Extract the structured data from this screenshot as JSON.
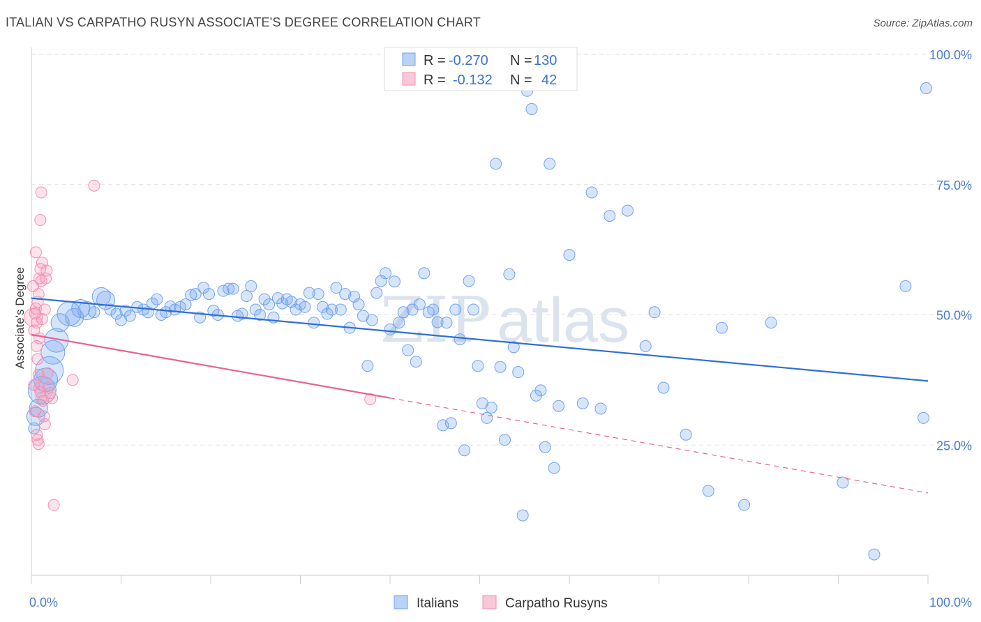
{
  "title": "ITALIAN VS CARPATHO RUSYN ASSOCIATE'S DEGREE CORRELATION CHART",
  "source": "Source: ZipAtlas.com",
  "watermark": {
    "zip": "ZIP",
    "atlas": "atlas"
  },
  "legend": {
    "rows": [
      {
        "r_label": "R =",
        "r_value": "-0.270",
        "n_label": "N =",
        "n_value": "130",
        "color": "#6fa3ef"
      },
      {
        "r_label": "R =",
        "r_value": "-0.132",
        "n_label": "N =",
        "n_value": "42",
        "color": "#f48fb1"
      }
    ]
  },
  "bottom_legend": [
    {
      "label": "Italians",
      "color": "#6fa3ef"
    },
    {
      "label": "Carpatho Rusyns",
      "color": "#f48fb1"
    }
  ],
  "chart_data": {
    "type": "scatter",
    "title": "ITALIAN VS CARPATHO RUSYN ASSOCIATE'S DEGREE CORRELATION CHART",
    "xlabel": "",
    "ylabel": "Associate's Degree",
    "xlim": [
      0,
      100
    ],
    "ylim": [
      0,
      100
    ],
    "x_tick_labels": [
      "0.0%",
      "100.0%"
    ],
    "y_tick_labels": [
      "100.0%",
      "75.0%",
      "50.0%",
      "25.0%"
    ],
    "y_ticks": [
      100,
      75,
      50,
      25
    ],
    "grid": true,
    "legend_position": "top-center",
    "series": [
      {
        "name": "Italians",
        "color": "#6fa3ef",
        "trend": {
          "x": [
            0,
            100
          ],
          "y": [
            53.2,
            37.3
          ],
          "solid_to": 100
        },
        "points": [
          [
            0.3,
            28.2,
            1
          ],
          [
            0.5,
            30.5,
            2
          ],
          [
            0.8,
            32.1,
            2
          ],
          [
            1.2,
            35.5,
            4
          ],
          [
            1.6,
            37.5,
            3
          ],
          [
            2.0,
            39.3,
            4
          ],
          [
            2.4,
            42.8,
            3
          ],
          [
            2.8,
            45.1,
            3
          ],
          [
            3.2,
            48.5,
            2
          ],
          [
            4.2,
            50.2,
            3
          ],
          [
            4.8,
            49.5,
            2
          ],
          [
            5.5,
            51.2,
            2
          ],
          [
            6.2,
            50.8,
            2
          ],
          [
            7.0,
            50.5,
            1
          ],
          [
            7.8,
            53.5,
            2
          ],
          [
            8.3,
            52.8,
            2
          ],
          [
            8.8,
            51.0,
            1
          ],
          [
            9.5,
            50.2,
            1
          ],
          [
            10.0,
            49.0,
            1
          ],
          [
            10.5,
            50.8,
            1
          ],
          [
            11.0,
            49.8,
            1
          ],
          [
            11.8,
            51.5,
            1
          ],
          [
            12.5,
            51.0,
            1
          ],
          [
            13.0,
            50.5,
            1
          ],
          [
            13.5,
            52.2,
            1
          ],
          [
            14.0,
            53.0,
            1
          ],
          [
            14.5,
            50.0,
            1
          ],
          [
            15.0,
            50.5,
            1
          ],
          [
            15.5,
            51.6,
            1
          ],
          [
            16.0,
            51.0,
            1
          ],
          [
            16.6,
            51.5,
            1
          ],
          [
            17.2,
            52.0,
            1
          ],
          [
            17.8,
            53.8,
            1
          ],
          [
            18.3,
            54.0,
            1
          ],
          [
            18.8,
            49.5,
            1
          ],
          [
            19.2,
            55.2,
            1
          ],
          [
            19.8,
            54.0,
            1
          ],
          [
            20.3,
            50.8,
            1
          ],
          [
            20.8,
            50.0,
            1
          ],
          [
            21.4,
            54.6,
            1
          ],
          [
            22.0,
            55.0,
            1
          ],
          [
            22.5,
            55.0,
            1
          ],
          [
            23.0,
            49.8,
            1
          ],
          [
            23.5,
            50.2,
            1
          ],
          [
            24.0,
            53.6,
            1
          ],
          [
            24.5,
            55.5,
            1
          ],
          [
            25.0,
            51.0,
            1
          ],
          [
            25.5,
            50.0,
            1
          ],
          [
            26.0,
            53.0,
            1
          ],
          [
            26.5,
            52.0,
            1
          ],
          [
            27.0,
            49.5,
            1
          ],
          [
            27.5,
            53.2,
            1
          ],
          [
            28.0,
            52.2,
            1
          ],
          [
            28.5,
            53.0,
            1
          ],
          [
            29.0,
            52.5,
            1
          ],
          [
            29.5,
            51.0,
            1
          ],
          [
            30.0,
            52.0,
            1
          ],
          [
            30.5,
            51.5,
            1
          ],
          [
            31.0,
            54.2,
            1
          ],
          [
            31.5,
            48.5,
            1
          ],
          [
            32.0,
            54.0,
            1
          ],
          [
            32.5,
            51.5,
            1
          ],
          [
            33.0,
            50.2,
            1
          ],
          [
            33.5,
            51.0,
            1
          ],
          [
            34.0,
            55.2,
            1
          ],
          [
            34.5,
            51.0,
            1
          ],
          [
            35.0,
            54.0,
            1
          ],
          [
            35.5,
            47.5,
            1
          ],
          [
            36.0,
            53.5,
            1
          ],
          [
            36.5,
            52.0,
            1
          ],
          [
            37.0,
            49.8,
            1
          ],
          [
            37.5,
            40.2,
            1
          ],
          [
            38.0,
            49.0,
            1
          ],
          [
            38.5,
            54.2,
            1
          ],
          [
            39.0,
            56.5,
            1
          ],
          [
            39.5,
            58.0,
            1
          ],
          [
            40.0,
            47.2,
            1
          ],
          [
            40.5,
            56.4,
            1
          ],
          [
            41.0,
            48.5,
            1
          ],
          [
            41.5,
            50.5,
            1
          ],
          [
            42.0,
            43.2,
            1
          ],
          [
            42.5,
            51.0,
            1
          ],
          [
            42.9,
            41.0,
            1
          ],
          [
            43.3,
            52.0,
            1
          ],
          [
            43.8,
            58.0,
            1
          ],
          [
            44.3,
            50.5,
            1
          ],
          [
            44.8,
            51.0,
            1
          ],
          [
            45.3,
            48.6,
            1
          ],
          [
            45.9,
            28.8,
            1
          ],
          [
            46.3,
            48.5,
            1
          ],
          [
            46.8,
            29.2,
            1
          ],
          [
            47.3,
            51.0,
            1
          ],
          [
            47.8,
            45.3,
            1
          ],
          [
            48.3,
            24.0,
            1
          ],
          [
            48.8,
            56.5,
            1
          ],
          [
            49.3,
            51.0,
            1
          ],
          [
            49.8,
            40.2,
            1
          ],
          [
            50.3,
            33.0,
            1
          ],
          [
            50.8,
            30.2,
            1
          ],
          [
            51.3,
            32.2,
            1
          ],
          [
            51.8,
            79.0,
            1
          ],
          [
            52.3,
            40.0,
            1
          ],
          [
            52.8,
            26.0,
            1
          ],
          [
            53.3,
            57.8,
            1
          ],
          [
            53.8,
            43.8,
            1
          ],
          [
            54.3,
            39.0,
            1
          ],
          [
            54.8,
            11.5,
            1
          ],
          [
            55.3,
            93.0,
            1
          ],
          [
            55.8,
            89.5,
            1
          ],
          [
            56.3,
            34.5,
            1
          ],
          [
            56.8,
            35.5,
            1
          ],
          [
            57.3,
            24.6,
            1
          ],
          [
            57.8,
            79.0,
            1
          ],
          [
            58.3,
            20.6,
            1
          ],
          [
            58.8,
            32.5,
            1
          ],
          [
            60.0,
            61.5,
            1
          ],
          [
            61.5,
            33.0,
            1
          ],
          [
            62.5,
            73.5,
            1
          ],
          [
            63.5,
            32.0,
            1
          ],
          [
            64.5,
            69.0,
            1
          ],
          [
            66.5,
            70.0,
            1
          ],
          [
            68.5,
            44.0,
            1
          ],
          [
            69.5,
            50.5,
            1
          ],
          [
            70.5,
            36.0,
            1
          ],
          [
            73.0,
            27.0,
            1
          ],
          [
            75.5,
            16.2,
            1
          ],
          [
            77.0,
            47.5,
            1
          ],
          [
            79.5,
            13.5,
            1
          ],
          [
            82.5,
            48.5,
            1
          ],
          [
            90.5,
            17.8,
            1
          ],
          [
            94.0,
            4.0,
            1
          ],
          [
            97.5,
            55.5,
            1
          ],
          [
            99.5,
            30.2,
            1
          ],
          [
            99.8,
            93.5,
            1
          ]
        ]
      },
      {
        "name": "Carpatho Rusyns",
        "color": "#f48fb1",
        "trend": {
          "x": [
            0,
            100
          ],
          "y": [
            46.2,
            15.8
          ],
          "solid_to": 40
        },
        "points": [
          [
            0.2,
            49.5,
            2
          ],
          [
            0.3,
            47.0,
            1
          ],
          [
            0.4,
            50.3,
            1
          ],
          [
            0.5,
            51.2,
            1
          ],
          [
            0.6,
            48.5,
            1
          ],
          [
            0.7,
            52.5,
            1
          ],
          [
            0.8,
            54.0,
            1
          ],
          [
            0.9,
            57.0,
            1
          ],
          [
            1.0,
            58.8,
            1
          ],
          [
            1.1,
            56.5,
            1
          ],
          [
            1.2,
            60.0,
            1
          ],
          [
            0.5,
            62.0,
            1
          ],
          [
            0.6,
            44.0,
            1
          ],
          [
            0.7,
            41.5,
            1
          ],
          [
            0.8,
            38.5,
            1
          ],
          [
            0.9,
            36.0,
            1
          ],
          [
            1.0,
            35.2,
            1
          ],
          [
            1.1,
            34.0,
            1
          ],
          [
            1.3,
            33.5,
            1
          ],
          [
            1.4,
            30.5,
            1
          ],
          [
            1.5,
            29.0,
            1
          ],
          [
            0.6,
            27.0,
            1
          ],
          [
            0.7,
            26.0,
            1
          ],
          [
            0.8,
            25.2,
            1
          ],
          [
            1.0,
            68.2,
            1
          ],
          [
            1.1,
            73.5,
            1
          ],
          [
            1.6,
            57.0,
            1
          ],
          [
            1.7,
            58.5,
            1
          ],
          [
            1.8,
            38.8,
            1
          ],
          [
            1.9,
            36.0,
            1
          ],
          [
            2.1,
            35.0,
            1
          ],
          [
            2.3,
            34.0,
            1
          ],
          [
            2.5,
            13.5,
            1
          ],
          [
            4.6,
            37.5,
            1
          ],
          [
            7.0,
            74.8,
            1
          ],
          [
            37.8,
            33.8,
            1
          ],
          [
            0.4,
            31.5,
            1
          ],
          [
            0.3,
            36.5,
            1
          ],
          [
            0.9,
            45.5,
            1
          ],
          [
            1.2,
            49.2,
            1
          ],
          [
            1.5,
            51.0,
            1
          ],
          [
            0.2,
            55.5,
            1
          ]
        ]
      }
    ]
  }
}
